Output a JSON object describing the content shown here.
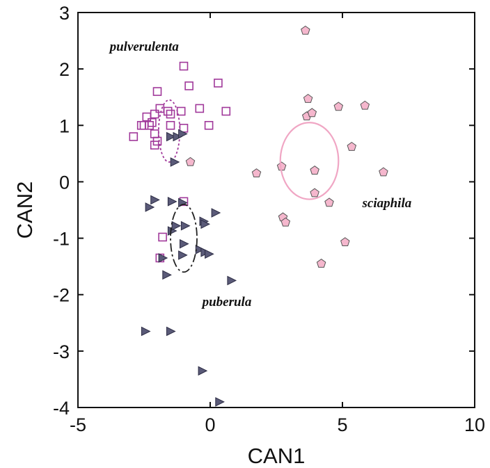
{
  "chart_data": {
    "type": "scatter",
    "xlabel": "CAN1",
    "ylabel": "CAN2",
    "xlim": [
      -5,
      10
    ],
    "ylim": [
      -4,
      3
    ],
    "xticks": [
      -5,
      0,
      5,
      10
    ],
    "yticks": [
      -4,
      -3,
      -2,
      -1,
      0,
      1,
      2,
      3
    ],
    "grid": false,
    "legend": "none",
    "series": [
      {
        "name": "pulverulenta",
        "marker": "square",
        "color": "#a0389a",
        "fill": "none",
        "points": [
          [
            -2.9,
            0.8
          ],
          [
            -2.6,
            1.0
          ],
          [
            -2.5,
            1.0
          ],
          [
            -2.4,
            1.15
          ],
          [
            -2.3,
            1.0
          ],
          [
            -2.2,
            1.05
          ],
          [
            -2.1,
            1.2
          ],
          [
            -2.1,
            0.85
          ],
          [
            -2.1,
            0.65
          ],
          [
            -2.0,
            0.72
          ],
          [
            -2.0,
            1.6
          ],
          [
            -1.9,
            1.3
          ],
          [
            -1.6,
            1.25
          ],
          [
            -1.5,
            1.2
          ],
          [
            -1.5,
            1.0
          ],
          [
            -1.1,
            1.25
          ],
          [
            -1.0,
            0.95
          ],
          [
            -1.0,
            2.05
          ],
          [
            -0.8,
            1.7
          ],
          [
            -0.4,
            1.3
          ],
          [
            -0.05,
            1.0
          ],
          [
            0.3,
            1.75
          ],
          [
            0.6,
            1.25
          ],
          [
            -1.8,
            -0.98
          ],
          [
            -1.9,
            -1.35
          ],
          [
            -1.0,
            -0.35
          ]
        ],
        "ellipse": {
          "cx": -1.55,
          "cy": 0.9,
          "rx": 0.4,
          "ry": 0.55,
          "dash": "dotted"
        }
      },
      {
        "name": "puberula",
        "marker": "triangle-right",
        "color": "#5a5a78",
        "fill": "#5a5a78",
        "points": [
          [
            -1.5,
            0.8
          ],
          [
            -1.25,
            0.8
          ],
          [
            -1.05,
            0.85
          ],
          [
            -1.35,
            0.35
          ],
          [
            -2.3,
            -0.45
          ],
          [
            -2.1,
            -0.32
          ],
          [
            -1.45,
            -0.35
          ],
          [
            -1.05,
            -0.37
          ],
          [
            -1.45,
            -0.87
          ],
          [
            -1.3,
            -0.78
          ],
          [
            -0.95,
            -0.78
          ],
          [
            -0.25,
            -0.7
          ],
          [
            -0.2,
            -0.75
          ],
          [
            0.2,
            -0.55
          ],
          [
            -1.8,
            -1.35
          ],
          [
            -1.0,
            -1.1
          ],
          [
            -1.05,
            -1.3
          ],
          [
            -1.65,
            -1.65
          ],
          [
            -0.4,
            -1.2
          ],
          [
            -0.2,
            -1.25
          ],
          [
            -0.05,
            -1.28
          ],
          [
            0.8,
            -1.75
          ],
          [
            -2.45,
            -2.65
          ],
          [
            -1.5,
            -2.65
          ],
          [
            -0.3,
            -3.35
          ],
          [
            0.35,
            -3.9
          ]
        ],
        "ellipse": {
          "cx": -1.0,
          "cy": -1.0,
          "rx": 0.5,
          "ry": 0.6,
          "dash": "dash-dot"
        }
      },
      {
        "name": "sciaphila",
        "marker": "pentagon",
        "color": "#f5b7cd",
        "fill": "#f5b7cd",
        "points": [
          [
            3.6,
            2.68
          ],
          [
            3.7,
            1.47
          ],
          [
            3.65,
            1.16
          ],
          [
            3.85,
            1.22
          ],
          [
            4.85,
            1.33
          ],
          [
            5.85,
            1.35
          ],
          [
            5.35,
            0.62
          ],
          [
            1.75,
            0.15
          ],
          [
            2.7,
            0.27
          ],
          [
            3.95,
            0.2
          ],
          [
            3.95,
            -0.2
          ],
          [
            4.5,
            -0.37
          ],
          [
            6.55,
            0.17
          ],
          [
            2.75,
            -0.63
          ],
          [
            2.85,
            -0.72
          ],
          [
            5.1,
            -1.07
          ],
          [
            4.2,
            -1.45
          ],
          [
            -0.75,
            0.35
          ]
        ],
        "ellipse": {
          "cx": 3.75,
          "cy": 0.37,
          "rx": 1.1,
          "ry": 0.68,
          "dash": "solid"
        }
      }
    ],
    "annotations": [
      {
        "text": "pulverulenta",
        "x": -3.8,
        "y": 2.32
      },
      {
        "text": "sciaphila",
        "x": 5.75,
        "y": -0.45
      },
      {
        "text": "puberula",
        "x": -0.3,
        "y": -2.2
      }
    ]
  }
}
